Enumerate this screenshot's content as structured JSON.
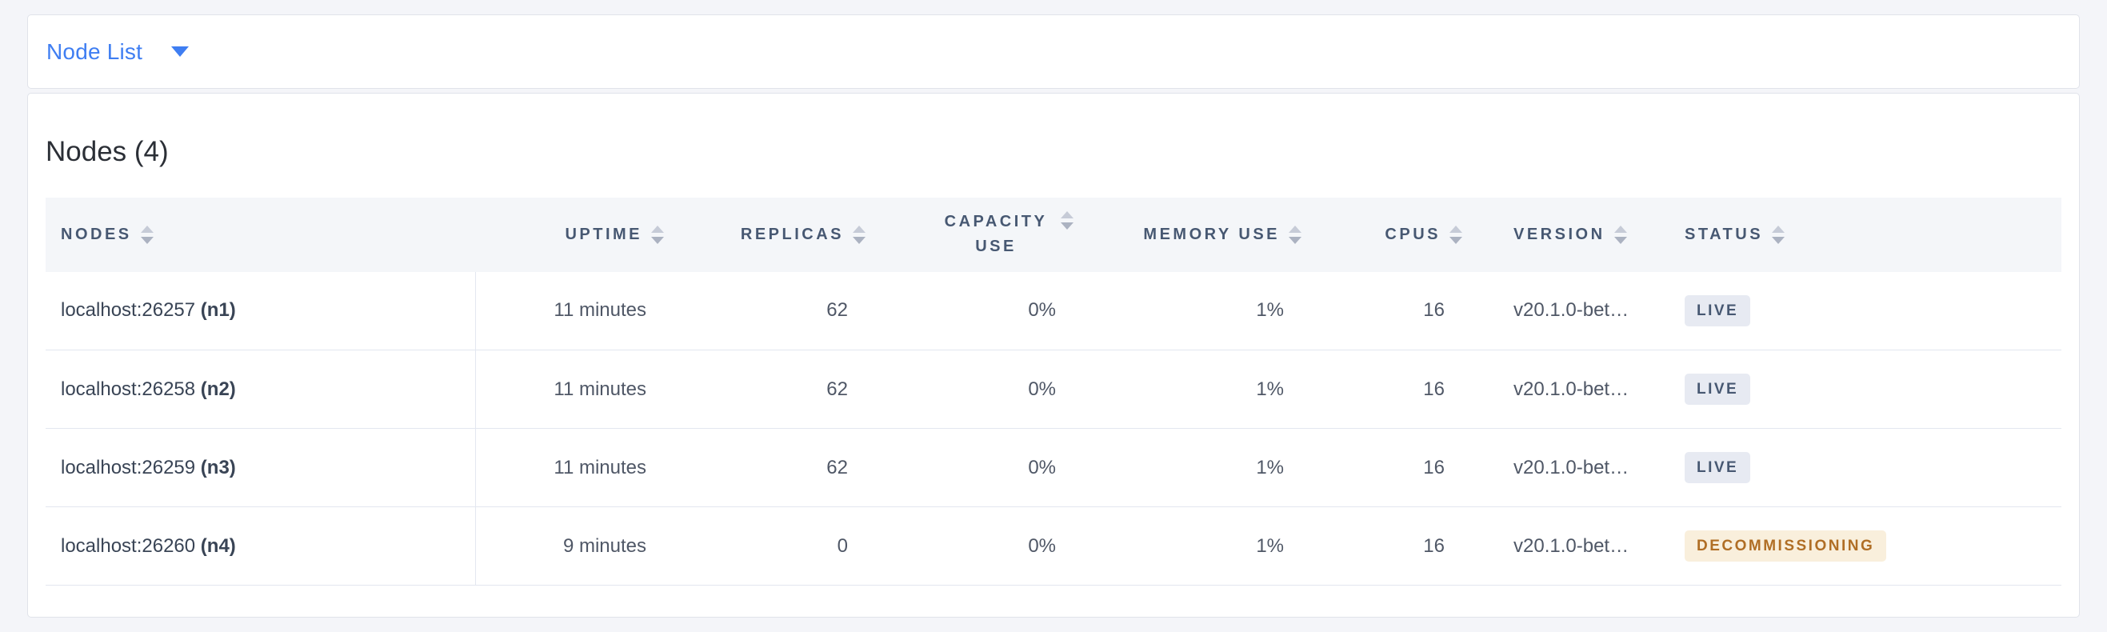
{
  "theme": {
    "accent": "#3f7ef2",
    "live_bg": "#e7eaf2",
    "live_text": "#475872",
    "decommissioning_bg": "#f9efdc",
    "decommissioning_text": "#b06e25"
  },
  "toolbar": {
    "view_selector_label": "Node List"
  },
  "main": {
    "title": "Nodes (4)",
    "table": {
      "columns": [
        {
          "key": "nodes",
          "label": "NODES",
          "align": "left",
          "wrap": false
        },
        {
          "key": "uptime",
          "label": "UPTIME",
          "align": "right",
          "wrap": false
        },
        {
          "key": "replicas",
          "label": "REPLICAS",
          "align": "right",
          "wrap": false
        },
        {
          "key": "capacity_use",
          "label": "CAPACITY USE",
          "align": "right",
          "wrap": true
        },
        {
          "key": "memory_use",
          "label": "MEMORY USE",
          "align": "right",
          "wrap": false
        },
        {
          "key": "cpus",
          "label": "CPUS",
          "align": "right",
          "wrap": false
        },
        {
          "key": "version",
          "label": "VERSION",
          "align": "left",
          "wrap": false
        },
        {
          "key": "status",
          "label": "STATUS",
          "align": "left",
          "wrap": false
        }
      ],
      "rows": [
        {
          "address": "localhost:26257",
          "node_id": "(n1)",
          "uptime": "11 minutes",
          "replicas": "62",
          "capacity_use": "0%",
          "memory_use": "1%",
          "cpus": "16",
          "version": "v20.1.0-bet…",
          "status": "LIVE",
          "status_type": "live"
        },
        {
          "address": "localhost:26258",
          "node_id": "(n2)",
          "uptime": "11 minutes",
          "replicas": "62",
          "capacity_use": "0%",
          "memory_use": "1%",
          "cpus": "16",
          "version": "v20.1.0-bet…",
          "status": "LIVE",
          "status_type": "live"
        },
        {
          "address": "localhost:26259",
          "node_id": "(n3)",
          "uptime": "11 minutes",
          "replicas": "62",
          "capacity_use": "0%",
          "memory_use": "1%",
          "cpus": "16",
          "version": "v20.1.0-bet…",
          "status": "LIVE",
          "status_type": "live"
        },
        {
          "address": "localhost:26260",
          "node_id": "(n4)",
          "uptime": "9 minutes",
          "replicas": "0",
          "capacity_use": "0%",
          "memory_use": "1%",
          "cpus": "16",
          "version": "v20.1.0-bet…",
          "status": "DECOMMISSIONING",
          "status_type": "decommissioning"
        }
      ]
    }
  }
}
